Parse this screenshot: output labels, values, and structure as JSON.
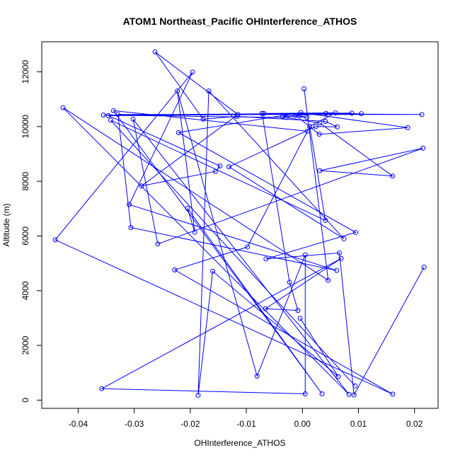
{
  "chart_data": {
    "type": "scatter",
    "title": "ATOM1 Northeast_Pacific OHInterference_ATHOS",
    "xlabel": "OHInterference_ATHOS",
    "ylabel": "Altitude (m)",
    "xlim": [
      -0.0465,
      0.0242
    ],
    "ylim": [
      -300,
      13100
    ],
    "x_ticks": [
      -0.04,
      -0.03,
      -0.02,
      -0.01,
      0.0,
      0.01,
      0.02
    ],
    "x_tick_labels": [
      "-0.04",
      "-0.03",
      "-0.02",
      "-0.01",
      "0.00",
      "0.01",
      "0.02"
    ],
    "y_ticks": [
      0,
      2000,
      4000,
      6000,
      8000,
      10000,
      12000
    ],
    "y_tick_labels": [
      "0",
      "2000",
      "4000",
      "6000",
      "8000",
      "10000",
      "12000"
    ],
    "grid": false,
    "legend": "none",
    "color": "#0000ff",
    "series": [
      {
        "mode": "lines+markers",
        "points": [
          [
            0.0003,
            11380
          ],
          [
            0.0046,
            4380
          ],
          [
            -0.0427,
            10690
          ],
          [
            0.0083,
            210
          ],
          [
            -0.0302,
            10270
          ],
          [
            -0.0258,
            5710
          ],
          [
            0.0215,
            9210
          ],
          [
            0.0031,
            8390
          ],
          [
            0.0161,
            8190
          ],
          [
            0.0031,
            10130
          ],
          [
            -0.0029,
            10330
          ],
          [
            -0.0355,
            10420
          ],
          [
            0.0088,
            10490
          ],
          [
            -0.0069,
            10480
          ],
          [
            0.0213,
            10440
          ],
          [
            -0.0329,
            10440
          ],
          [
            -0.0306,
            6310
          ],
          [
            0.0061,
            4740
          ],
          [
            -0.0309,
            7150
          ],
          [
            -0.0196,
            11990
          ],
          [
            -0.0441,
            5860
          ],
          [
            0.0161,
            220
          ],
          [
            -0.0228,
            4760
          ],
          [
            -0.0098,
            5600
          ],
          [
            0.0009,
            9830
          ],
          [
            -0.0337,
            10580
          ],
          [
            0.0035,
            230
          ],
          [
            -0.0205,
            7010
          ],
          [
            -0.0192,
            6140
          ],
          [
            -0.0223,
            11300
          ],
          [
            -0.0081,
            880
          ],
          [
            0.0005,
            5310
          ],
          [
            0.0005,
            230
          ],
          [
            -0.0358,
            420
          ],
          [
            0.0069,
            5180
          ],
          [
            -0.0066,
            3340
          ],
          [
            -0.0008,
            3280
          ],
          [
            -0.0023,
            4310
          ],
          [
            -0.0072,
            10480
          ],
          [
            0.0059,
            10500
          ],
          [
            0.0013,
            10010
          ],
          [
            0.0041,
            6570
          ],
          [
            -0.0342,
            10230
          ],
          [
            0.0094,
            520
          ]
        ]
      },
      {
        "mode": "lines+markers",
        "points": [
          [
            0.0217,
            4860
          ],
          [
            0.0092,
            190
          ],
          [
            0.0066,
            5380
          ],
          [
            -0.0065,
            5160
          ],
          [
            0.0095,
            6130
          ],
          [
            -0.0221,
            9780
          ],
          [
            -0.0003,
            10510
          ],
          [
            0.0188,
            9960
          ],
          [
            0.003,
            9720
          ],
          [
            -0.0012,
            10410
          ],
          [
            0.0008,
            10340
          ],
          [
            -0.0035,
            10370
          ],
          [
            0.0042,
            10480
          ],
          [
            0.0105,
            10470
          ],
          [
            -0.0346,
            10400
          ],
          [
            -0.0147,
            8560
          ],
          [
            -0.0155,
            8360
          ],
          [
            -0.0287,
            7830
          ],
          [
            -0.0115,
            10440
          ],
          [
            -0.0263,
            12730
          ],
          [
            -0.0177,
            10270
          ],
          [
            -0.0117,
            10370
          ],
          [
            0.0041,
            10190
          ],
          [
            0.0062,
            9990
          ],
          [
            0.0024,
            10000
          ],
          [
            -0.0131,
            8530
          ],
          [
            0.0074,
            5900
          ],
          [
            -0.0167,
            11300
          ],
          [
            -0.0186,
            180
          ],
          [
            -0.016,
            4710
          ],
          [
            0.0064,
            860
          ],
          [
            -0.0004,
            2990
          ]
        ]
      }
    ]
  }
}
